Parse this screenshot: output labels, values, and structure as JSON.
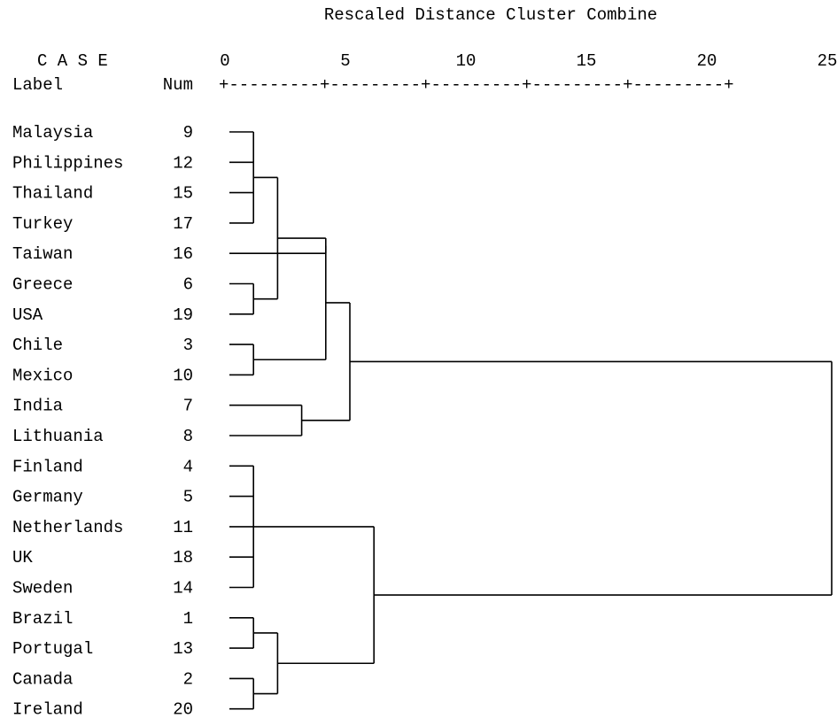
{
  "title": "Rescaled Distance Cluster Combine",
  "case_header": "C A S E",
  "label_header": "Label",
  "num_header": "Num",
  "scale_ruler": "+---------+---------+---------+---------+---------+",
  "scale_ticks": [
    "0",
    "5",
    "10",
    "15",
    "20",
    "25"
  ],
  "cases": [
    {
      "label": "Malaysia",
      "num": "9"
    },
    {
      "label": "Philippines",
      "num": "12"
    },
    {
      "label": "Thailand",
      "num": "15"
    },
    {
      "label": "Turkey",
      "num": "17"
    },
    {
      "label": "Taiwan",
      "num": "16"
    },
    {
      "label": "Greece",
      "num": "6"
    },
    {
      "label": "USA",
      "num": "19"
    },
    {
      "label": "Chile",
      "num": "3"
    },
    {
      "label": "Mexico",
      "num": "10"
    },
    {
      "label": "India",
      "num": "7"
    },
    {
      "label": "Lithuania",
      "num": "8"
    },
    {
      "label": "Finland",
      "num": "4"
    },
    {
      "label": "Germany",
      "num": "5"
    },
    {
      "label": "Netherlands",
      "num": "11"
    },
    {
      "label": "UK",
      "num": "18"
    },
    {
      "label": "Sweden",
      "num": "14"
    },
    {
      "label": "Brazil",
      "num": "1"
    },
    {
      "label": "Portugal",
      "num": "13"
    },
    {
      "label": "Canada",
      "num": "2"
    },
    {
      "label": "Ireland",
      "num": "20"
    }
  ],
  "merges": [
    {
      "members": [
        0,
        1,
        2,
        3
      ],
      "distance": 1.0
    },
    {
      "members": [
        5,
        6
      ],
      "distance": 1.0
    },
    {
      "members": [
        7,
        8
      ],
      "distance": 1.0
    },
    {
      "members": [
        "c0",
        "c1"
      ],
      "distance": 2.0
    },
    {
      "members": [
        4,
        "c3"
      ],
      "distance": 4.0
    },
    {
      "members": [
        "c4",
        "c2"
      ],
      "distance": 4.0
    },
    {
      "members": [
        9,
        10
      ],
      "distance": 3.0
    },
    {
      "members": [
        "c5",
        "c6"
      ],
      "distance": 5.0
    },
    {
      "members": [
        11,
        12,
        13,
        14,
        15
      ],
      "distance": 1.0
    },
    {
      "members": [
        16,
        17
      ],
      "distance": 1.0
    },
    {
      "members": [
        18,
        19
      ],
      "distance": 1.0
    },
    {
      "members": [
        "c9",
        "c10"
      ],
      "distance": 2.0
    },
    {
      "members": [
        "c8",
        "c11"
      ],
      "distance": 6.0
    },
    {
      "members": [
        "c7",
        "c12"
      ],
      "distance": 25.0
    }
  ]
}
